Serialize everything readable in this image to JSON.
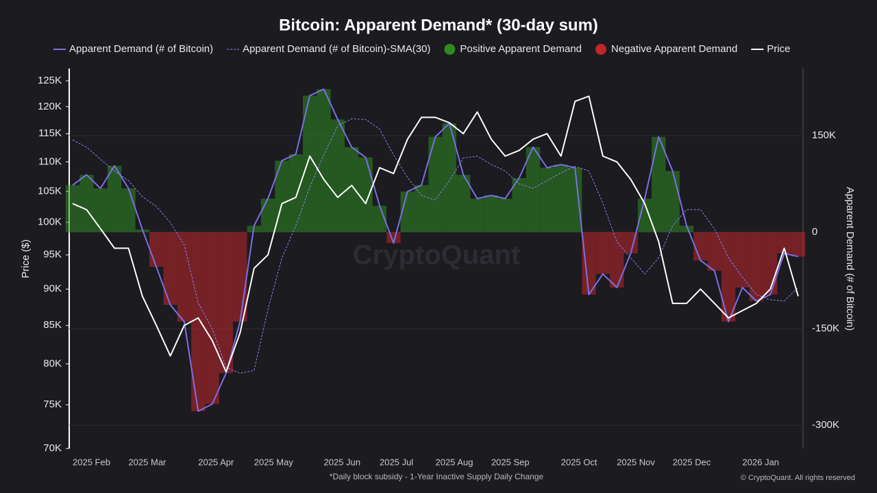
{
  "chart_data": {
    "type": "combo",
    "title": "Bitcoin: Apparent Demand* (30-day sum)",
    "footnote": "*Daily block subsidy - 1-Year Inactive Supply Daily Change",
    "copyright": "© CryptoQuant. All rights reserved",
    "watermark": "CryptoQuant",
    "y_label": "Price ($)",
    "y2_label": "Apparent Demand (# of Bitcoin)",
    "y_scale": "log",
    "grid": true,
    "categories": [
      "2025 Feb",
      null,
      null,
      null,
      "2025 Mar",
      null,
      null,
      null,
      null,
      "2025 Apr",
      null,
      null,
      null,
      "2025 May",
      null,
      null,
      null,
      null,
      "2025 Jun",
      null,
      null,
      null,
      "2025 Jul",
      null,
      null,
      null,
      "2025 Aug",
      null,
      null,
      null,
      "2025 Sep",
      null,
      null,
      null,
      null,
      "2025 Oct",
      null,
      null,
      null,
      "2025 Nov",
      null,
      null,
      null,
      "2025 Dec",
      null,
      null,
      null,
      null,
      "2026 Jan",
      null,
      null,
      null,
      null
    ],
    "ylim": [
      70000,
      125000
    ],
    "yticks": [
      {
        "value": 70000,
        "label": "70K"
      },
      {
        "value": 75000,
        "label": "75K"
      },
      {
        "value": 80000,
        "label": "80K"
      },
      {
        "value": 85000,
        "label": "85K"
      },
      {
        "value": 90000,
        "label": "90K"
      },
      {
        "value": 95000,
        "label": "95K"
      },
      {
        "value": 100000,
        "label": "100K"
      },
      {
        "value": 105000,
        "label": "105K"
      },
      {
        "value": 110000,
        "label": "110K"
      },
      {
        "value": 115000,
        "label": "115K"
      },
      {
        "value": 120000,
        "label": "120K"
      },
      {
        "value": 125000,
        "label": "125K"
      }
    ],
    "y2lim": [
      -336000,
      235000
    ],
    "y2ticks": [
      {
        "value": -300000,
        "label": "-300K"
      },
      {
        "value": -150000,
        "label": "-150K"
      },
      0,
      {
        "value": 150000,
        "label": "150K"
      }
    ],
    "series": [
      {
        "name": "Apparent Demand (# of Bitcoin)",
        "color": "#7b70e6",
        "type": "line",
        "axis": "y2",
        "values": [
          73000,
          89000,
          68000,
          103000,
          68000,
          4000,
          -54000,
          -113000,
          -139000,
          -278000,
          -267000,
          -219000,
          -139000,
          10000,
          52000,
          111000,
          121000,
          212000,
          222000,
          175000,
          132000,
          116000,
          41000,
          -17000,
          63000,
          73000,
          148000,
          169000,
          89000,
          52000,
          57000,
          52000,
          84000,
          132000,
          100000,
          105000,
          100000,
          -97000,
          -65000,
          -86000,
          -33000,
          52000,
          148000,
          95000,
          10000,
          -44000,
          -60000,
          -139000,
          -86000,
          -107000,
          -97000,
          -33000,
          -38000
        ]
      },
      {
        "name": "Apparent Demand (# of Bitcoin)-SMA(30)",
        "color": "#8f82f0",
        "type": "dashed",
        "axis": "y2",
        "values": [
          143000,
          132000,
          113000,
          95000,
          80000,
          55000,
          40000,
          15000,
          -20000,
          -110000,
          -150000,
          -210000,
          -219000,
          -215000,
          -120000,
          -40000,
          10000,
          70000,
          120000,
          165000,
          176000,
          175000,
          160000,
          120000,
          85000,
          57000,
          50000,
          80000,
          115000,
          118000,
          105000,
          95000,
          75000,
          68000,
          80000,
          92000,
          102000,
          95000,
          45000,
          -15000,
          -40000,
          -65000,
          -40000,
          10000,
          35000,
          35000,
          5000,
          -40000,
          -70000,
          -97000,
          -105000,
          -107000,
          -86000
        ]
      },
      {
        "name": "Positive Apparent Demand",
        "color": "#2f8a22",
        "type": "fill",
        "sign": "positive"
      },
      {
        "name": "Negative Apparent Demand",
        "color": "#c0262c",
        "type": "fill",
        "sign": "negative"
      },
      {
        "name": "Price",
        "color": "#ffffff",
        "type": "line",
        "axis": "y",
        "values": [
          103000,
          102000,
          99000,
          96000,
          96000,
          89000,
          85000,
          81000,
          85000,
          86000,
          83000,
          79000,
          84000,
          93000,
          95000,
          103000,
          104000,
          111000,
          107000,
          104000,
          106000,
          103000,
          109000,
          108000,
          114000,
          118000,
          118000,
          117000,
          115000,
          119000,
          114000,
          111000,
          112000,
          114000,
          115000,
          111000,
          121000,
          122000,
          111000,
          110000,
          107000,
          103000,
          97000,
          88000,
          88000,
          90000,
          88000,
          86000,
          87000,
          88000,
          90000,
          96000,
          89000
        ]
      }
    ]
  }
}
